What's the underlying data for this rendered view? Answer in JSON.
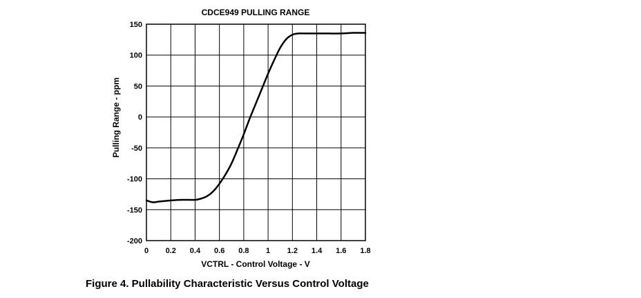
{
  "chart_data": {
    "type": "line",
    "title": "CDCE949 PULLING RANGE",
    "xlabel": "VCTRL - Control Voltage - V",
    "ylabel": "Pulling Range - ppm",
    "xlim": [
      0,
      1.8
    ],
    "ylim": [
      -200,
      150
    ],
    "x_ticks": [
      0,
      0.2,
      0.4,
      0.6,
      0.8,
      1,
      1.2,
      1.4,
      1.6,
      1.8
    ],
    "x_tick_labels": [
      "0",
      "0.2",
      "0.4",
      "0.6",
      "0.8",
      "1",
      "1.2",
      "1.4",
      "1.6",
      "1.8"
    ],
    "y_ticks": [
      150,
      100,
      50,
      0,
      -50,
      -100,
      -150,
      -200
    ],
    "y_tick_labels": [
      "150",
      "100",
      "50",
      "0",
      "-50",
      "-100",
      "-150",
      "-200"
    ],
    "grid": true,
    "series": [
      {
        "color": "#000000",
        "x": [
          0,
          0.05,
          0.1,
          0.2,
          0.3,
          0.4,
          0.45,
          0.5,
          0.55,
          0.6,
          0.65,
          0.7,
          0.75,
          0.8,
          0.85,
          0.9,
          0.95,
          1.0,
          1.05,
          1.1,
          1.15,
          1.2,
          1.25,
          1.3,
          1.35,
          1.4,
          1.45,
          1.5,
          1.6,
          1.7,
          1.8
        ],
        "y": [
          -135,
          -138,
          -137,
          -135,
          -134,
          -134,
          -132,
          -128,
          -120,
          -108,
          -93,
          -75,
          -52,
          -28,
          -2,
          22,
          46,
          70,
          92,
          112,
          126,
          133,
          135,
          135,
          135,
          135,
          135,
          135,
          135,
          136,
          136
        ]
      }
    ]
  },
  "caption": "Figure 4. Pullability Characteristic Versus Control Voltage"
}
